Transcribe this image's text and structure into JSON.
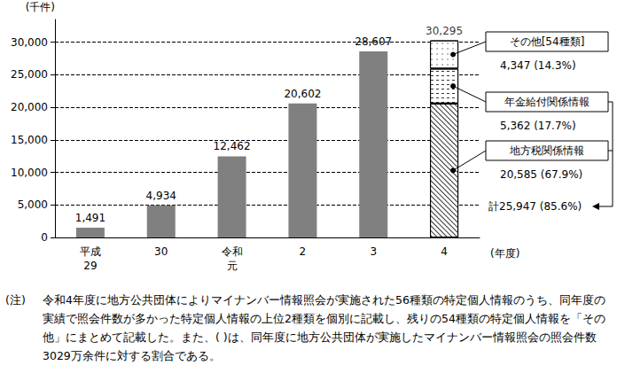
{
  "chart_data": {
    "type": "bar",
    "y_label": "(千件)",
    "x_label": "(年度)",
    "categories": [
      "平成\n29",
      "30",
      "令和\n元",
      "2",
      "3",
      "4"
    ],
    "ylim": [
      0,
      33500
    ],
    "yticks": [
      0,
      {
        "value": 5000,
        "label": "5,000"
      },
      {
        "value": 10000,
        "label": "10,000"
      },
      {
        "value": 15000,
        "label": "15,000"
      },
      {
        "value": 20000,
        "label": "20,000"
      },
      {
        "value": 25000,
        "label": "25,000"
      },
      {
        "value": 30000,
        "label": "30,000"
      }
    ],
    "grid": true,
    "stacked": true,
    "data_labels": true,
    "series": [
      {
        "color": "#808080",
        "values": [
          1491,
          4934,
          12462,
          20602,
          28607,
          null
        ],
        "value_labels": [
          "1,491",
          "4,934",
          "12,462",
          "20,602",
          "28,607",
          null
        ]
      },
      {
        "name": "地方税関係情報",
        "color": "#ffffff",
        "values": [
          null,
          null,
          null,
          null,
          null,
          20585
        ],
        "value_labels": [
          null,
          null,
          null,
          null,
          null,
          "20,585"
        ],
        "share_label": "(67.9%)"
      },
      {
        "name": "年金給付関係情報",
        "color": "#ffffff",
        "values": [
          null,
          null,
          null,
          null,
          null,
          5362
        ],
        "value_labels": [
          null,
          null,
          null,
          null,
          null,
          "5,362"
        ],
        "share_label": "(17.7%)"
      },
      {
        "name": "その他[54種類]",
        "color": "#ffffff",
        "values": [
          null,
          null,
          null,
          null,
          null,
          4347
        ],
        "value_labels": [
          null,
          null,
          null,
          null,
          null,
          "4,347"
        ],
        "share_label": "(14.3%)"
      }
    ],
    "total": 30295,
    "total_label": "30,295",
    "annotation": "計25,947 (85.6%)",
    "note_label": "(注)",
    "note": "令和4年度に地方公共団体によりマイナンバー情報照会が実施された56種類の特定個人情報のうち、同年度の実績で照会件数が多かった特定個人情報の上位2種類を個別に記載し、残りの54種類の特定個人情報を「その他」にまとめて記載した。また、( )は、同年度に地方公共団体が実施したマイナンバー情報照会の照会件数3029万余件に対する割合である。"
  }
}
